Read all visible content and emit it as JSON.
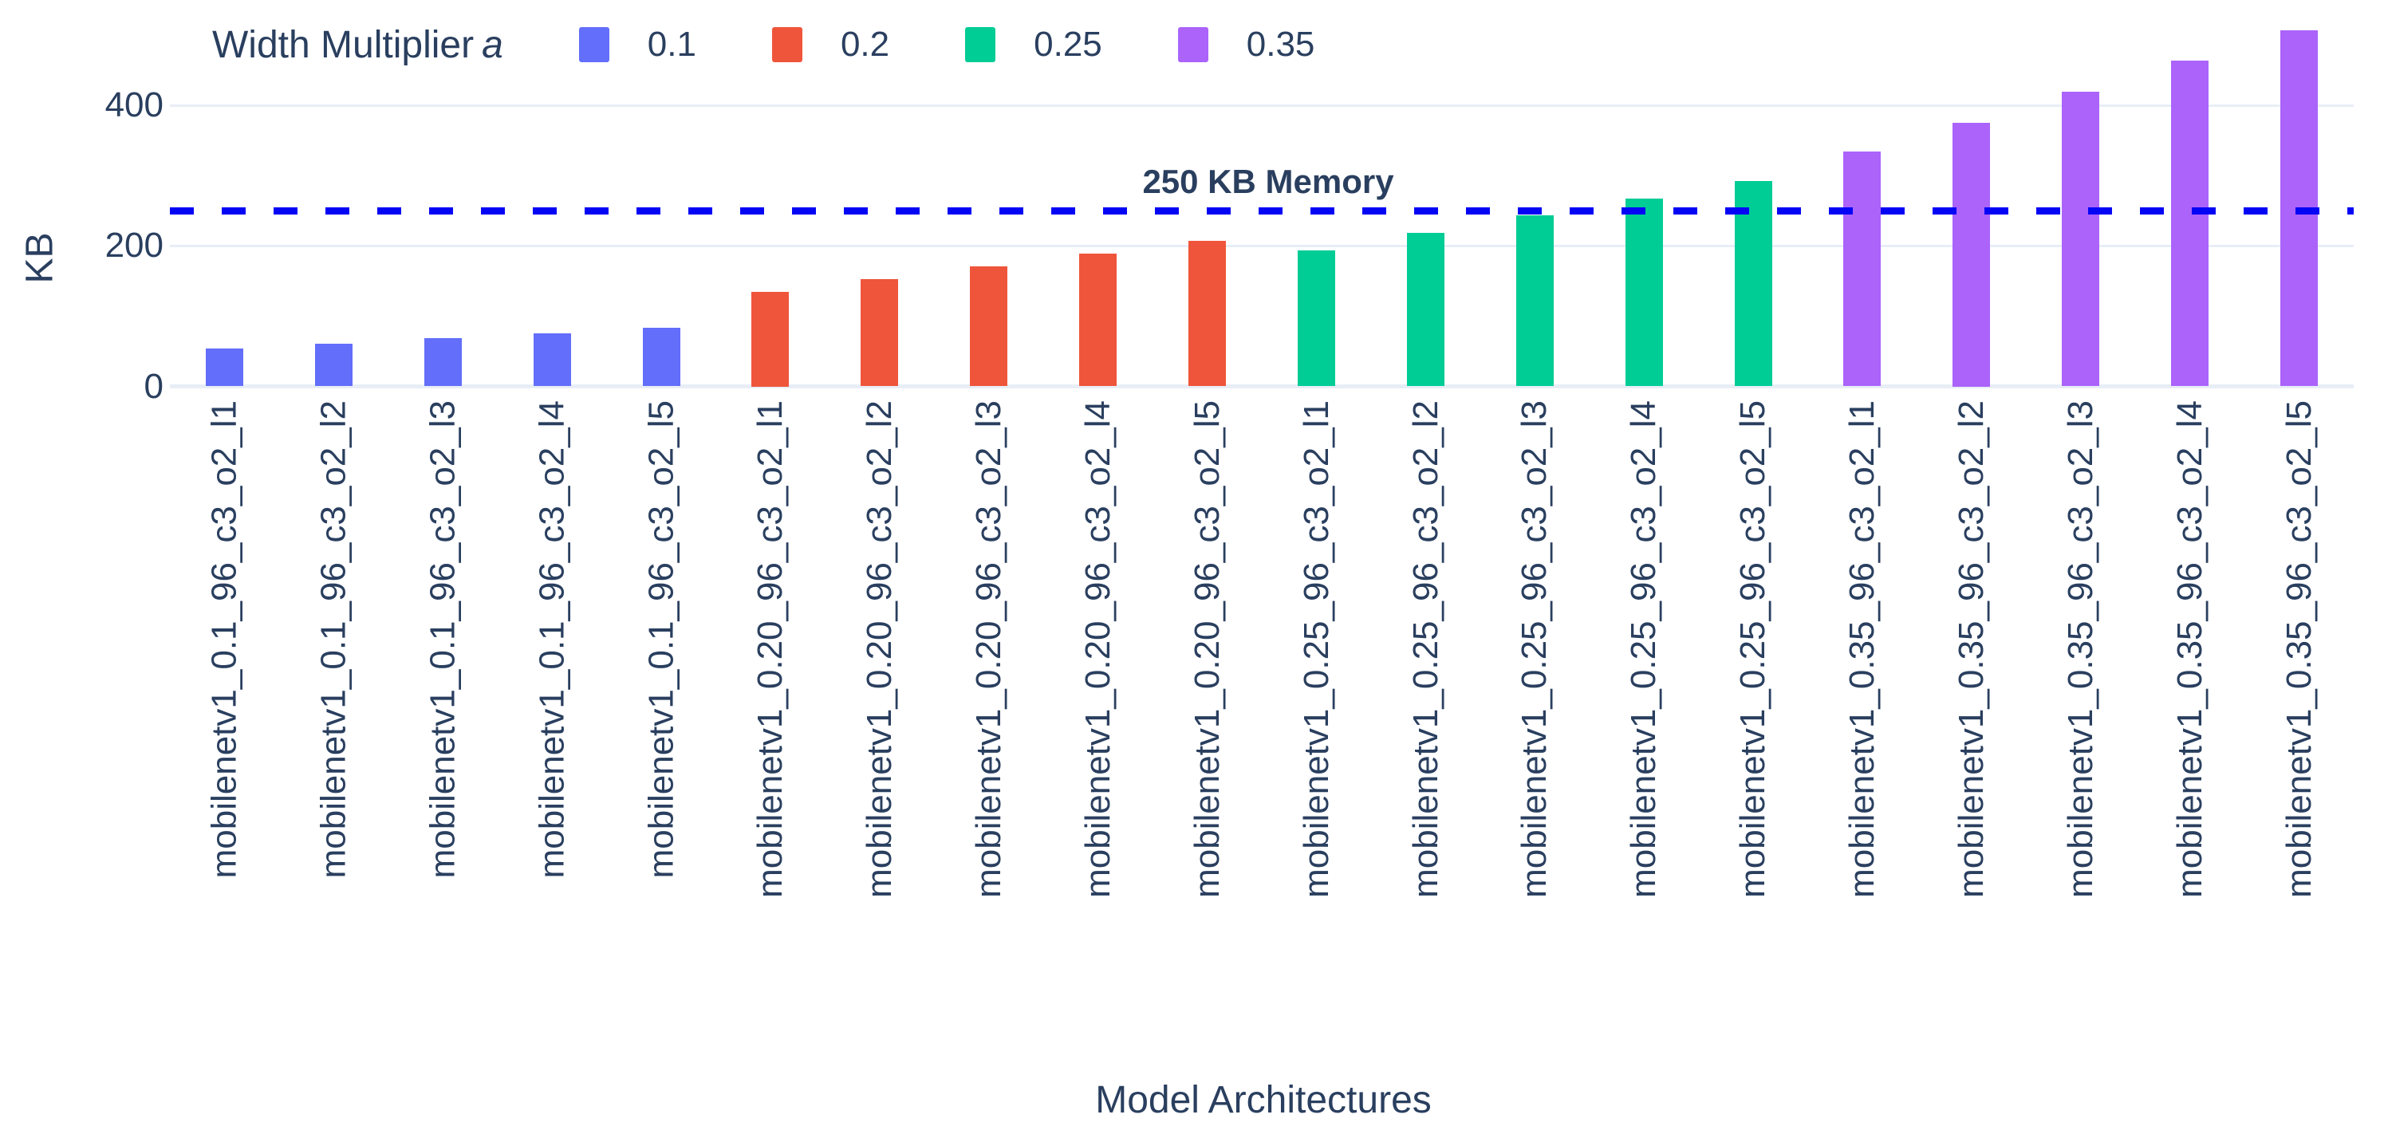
{
  "chart_data": {
    "type": "bar",
    "title": "",
    "xlabel": "Model Architectures",
    "ylabel": "KB",
    "yticks": [
      0,
      200,
      400
    ],
    "ylim": [
      0,
      512
    ],
    "grid": true,
    "legend_position": "top",
    "legend": {
      "title": "Width Multiplier",
      "title_symbol": "a",
      "items": [
        {
          "label": "0.1",
          "color": "#636efa"
        },
        {
          "label": "0.2",
          "color": "#ef553b"
        },
        {
          "label": "0.25",
          "color": "#00cc96"
        },
        {
          "label": "0.35",
          "color": "#ab63fa"
        }
      ]
    },
    "threshold": {
      "label": "250 KB Memory",
      "value": 250,
      "color": "#0505f5",
      "style": "dashed"
    },
    "bars": [
      {
        "label": "mobilenetv1_0.1_96_c3_o2_l1",
        "group": "0.1",
        "value": 54
      },
      {
        "label": "mobilenetv1_0.1_96_c3_o2_l2",
        "group": "0.1",
        "value": 61
      },
      {
        "label": "mobilenetv1_0.1_96_c3_o2_l3",
        "group": "0.1",
        "value": 69
      },
      {
        "label": "mobilenetv1_0.1_96_c3_o2_l4",
        "group": "0.1",
        "value": 76
      },
      {
        "label": "mobilenetv1_0.1_96_c3_o2_l5",
        "group": "0.1",
        "value": 83
      },
      {
        "label": "mobilenetv1_0.20_96_c3_o2_l1",
        "group": "0.2",
        "value": 135
      },
      {
        "label": "mobilenetv1_0.20_96_c3_o2_l2",
        "group": "0.2",
        "value": 153
      },
      {
        "label": "mobilenetv1_0.20_96_c3_o2_l3",
        "group": "0.2",
        "value": 171
      },
      {
        "label": "mobilenetv1_0.20_96_c3_o2_l4",
        "group": "0.2",
        "value": 189
      },
      {
        "label": "mobilenetv1_0.20_96_c3_o2_l5",
        "group": "0.2",
        "value": 207
      },
      {
        "label": "mobilenetv1_0.25_96_c3_o2_l1",
        "group": "0.25",
        "value": 194
      },
      {
        "label": "mobilenetv1_0.25_96_c3_o2_l2",
        "group": "0.25",
        "value": 218
      },
      {
        "label": "mobilenetv1_0.25_96_c3_o2_l3",
        "group": "0.25",
        "value": 243
      },
      {
        "label": "mobilenetv1_0.25_96_c3_o2_l4",
        "group": "0.25",
        "value": 267
      },
      {
        "label": "mobilenetv1_0.25_96_c3_o2_l5",
        "group": "0.25",
        "value": 292
      },
      {
        "label": "mobilenetv1_0.35_96_c3_o2_l1",
        "group": "0.35",
        "value": 334
      },
      {
        "label": "mobilenetv1_0.35_96_c3_o2_l2",
        "group": "0.35",
        "value": 375
      },
      {
        "label": "mobilenetv1_0.35_96_c3_o2_l3",
        "group": "0.35",
        "value": 419
      },
      {
        "label": "mobilenetv1_0.35_96_c3_o2_l4",
        "group": "0.35",
        "value": 463
      },
      {
        "label": "mobilenetv1_0.35_96_c3_o2_l5",
        "group": "0.35",
        "value": 507
      }
    ],
    "colors": {
      "text": "#2a3f5f",
      "grid": "#e8eef6",
      "background": "#ffffff"
    }
  }
}
